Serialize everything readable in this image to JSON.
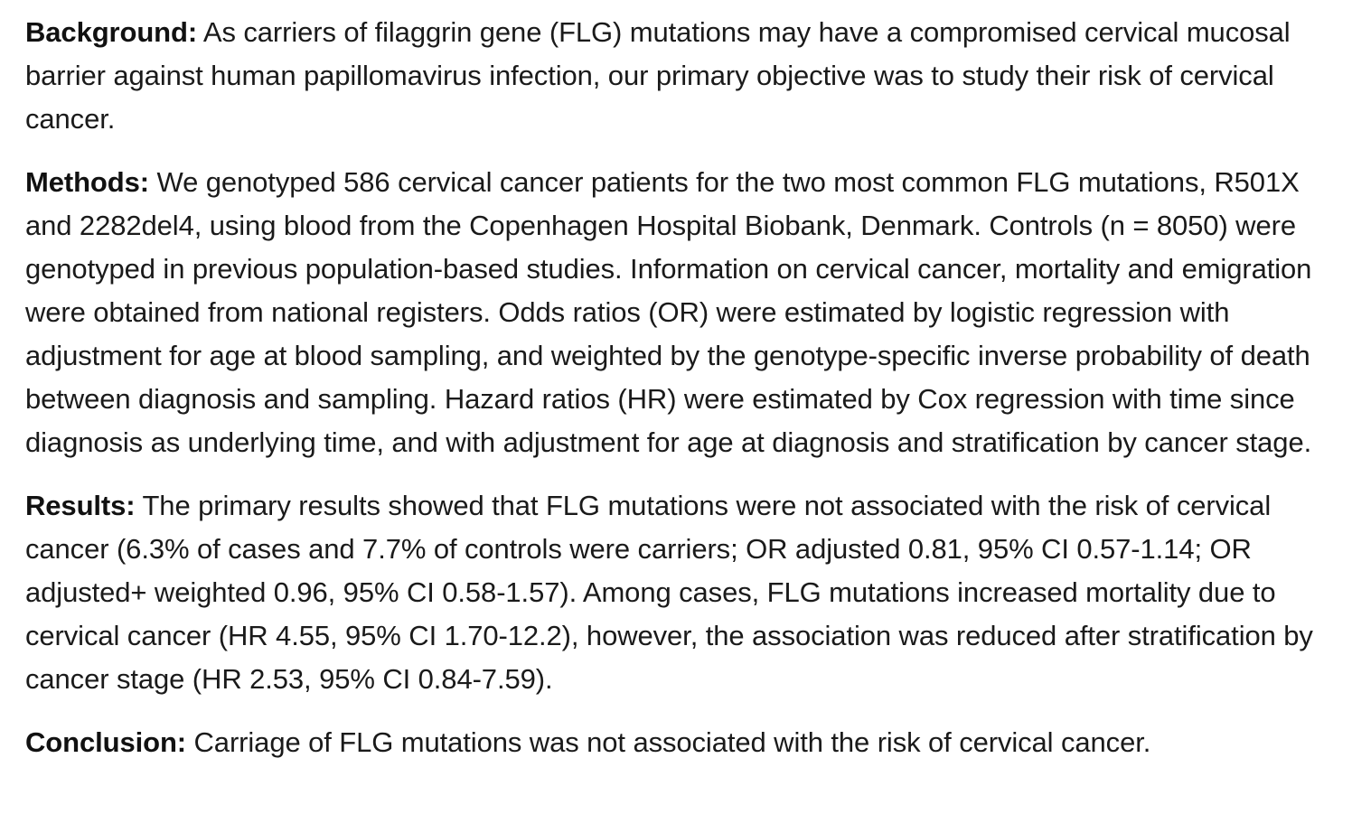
{
  "abstract": {
    "background": {
      "label": "Background:",
      "text": "As carriers of filaggrin gene (FLG) mutations may have a compromised cervical mucosal barrier against human papillomavirus infection, our primary objective was to study their risk of cervical cancer."
    },
    "methods": {
      "label": "Methods:",
      "text": "We genotyped 586 cervical cancer patients for the two most common FLG mutations, R501X and 2282del4, using blood from the Copenhagen Hospital Biobank, Denmark. Controls (n = 8050) were genotyped in previous population-based studies. Information on cervical cancer, mortality and emigration were obtained from national registers. Odds ratios (OR) were estimated by logistic regression with adjustment for age at blood sampling, and weighted by the genotype-specific inverse probability of death between diagnosis and sampling. Hazard ratios (HR) were estimated by Cox regression with time since diagnosis as underlying time, and with adjustment for age at diagnosis and stratification by cancer stage."
    },
    "results": {
      "label": "Results:",
      "text": "The primary results showed that FLG mutations were not associated with the risk of cervical cancer (6.3% of cases and 7.7% of controls were carriers; OR adjusted 0.81, 95% CI 0.57-1.14; OR adjusted+ weighted 0.96, 95% CI 0.58-1.57). Among cases, FLG mutations increased mortality due to cervical cancer (HR 4.55, 95% CI 1.70-12.2), however, the association was reduced after stratification by cancer stage (HR 2.53, 95% CI 0.84-7.59)."
    },
    "conclusion": {
      "label": "Conclusion:",
      "text": "Carriage of FLG mutations was not associated with the risk of cervical cancer."
    }
  }
}
